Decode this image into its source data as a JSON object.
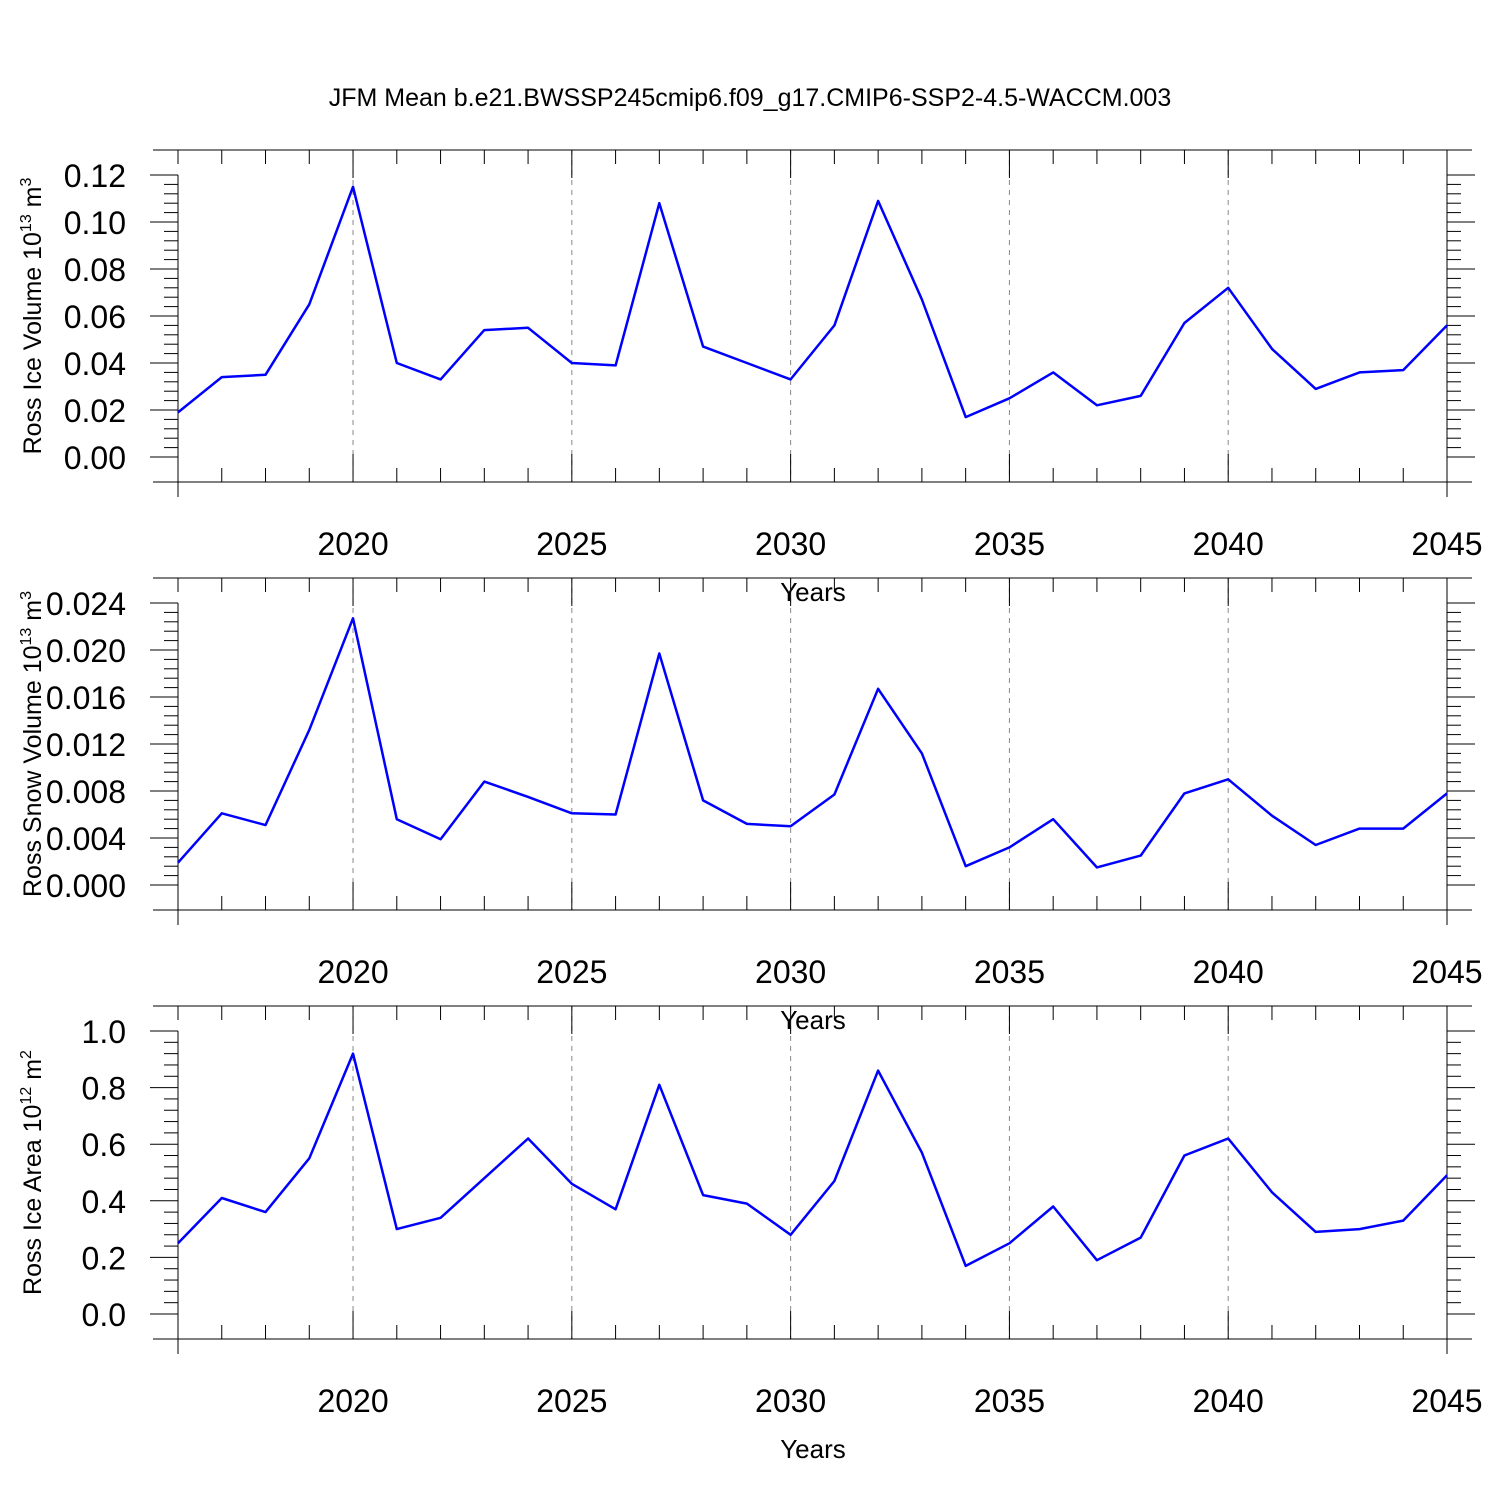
{
  "title": "JFM Mean b.e21.BWSSP245cmip6.f09_g17.CMIP6-SSP2-4.5-WACCM.003",
  "colors": {
    "line": "#0000ff",
    "axis": "#000000",
    "grid": "#888888"
  },
  "chart_data": [
    {
      "type": "line",
      "xlabel": "Years",
      "ylabel": {
        "base": "Ross Ice Volume 10",
        "exp": "13",
        "unit": " m",
        "unit_exp": "3"
      },
      "xlim": [
        2016,
        2045
      ],
      "ylim": [
        0,
        0.12
      ],
      "xticks": [
        2020,
        2025,
        2030,
        2035,
        2040,
        2045
      ],
      "yticks": [
        0,
        0.02,
        0.04,
        0.06,
        0.08,
        0.1,
        0.12
      ],
      "ytick_labels": [
        "0.00",
        "0.02",
        "0.04",
        "0.06",
        "0.08",
        "0.10",
        "0.12"
      ],
      "grid": "vertical dashed at major x ticks",
      "x": [
        2016,
        2017,
        2018,
        2019,
        2020,
        2021,
        2022,
        2023,
        2024,
        2025,
        2026,
        2027,
        2028,
        2029,
        2030,
        2031,
        2032,
        2033,
        2034,
        2035,
        2036,
        2037,
        2038,
        2039,
        2040,
        2041,
        2042,
        2043,
        2044,
        2045
      ],
      "y": [
        0.019,
        0.034,
        0.035,
        0.065,
        0.115,
        0.04,
        0.033,
        0.054,
        0.055,
        0.04,
        0.039,
        0.108,
        0.047,
        0.04,
        0.033,
        0.056,
        0.109,
        0.067,
        0.017,
        0.025,
        0.036,
        0.022,
        0.026,
        0.057,
        0.072,
        0.046,
        0.029,
        0.036,
        0.037,
        0.056
      ]
    },
    {
      "type": "line",
      "xlabel": "Years",
      "ylabel": {
        "base": "Ross Snow Volume 10",
        "exp": "13",
        "unit": " m",
        "unit_exp": "3"
      },
      "xlim": [
        2016,
        2045
      ],
      "ylim": [
        0,
        0.024
      ],
      "xticks": [
        2020,
        2025,
        2030,
        2035,
        2040,
        2045
      ],
      "yticks": [
        0,
        0.004,
        0.008,
        0.012,
        0.016,
        0.02,
        0.024
      ],
      "ytick_labels": [
        "0.000",
        "0.004",
        "0.008",
        "0.012",
        "0.016",
        "0.020",
        "0.024"
      ],
      "grid": "vertical dashed at major x ticks",
      "x": [
        2016,
        2017,
        2018,
        2019,
        2020,
        2021,
        2022,
        2023,
        2024,
        2025,
        2026,
        2027,
        2028,
        2029,
        2030,
        2031,
        2032,
        2033,
        2034,
        2035,
        2036,
        2037,
        2038,
        2039,
        2040,
        2041,
        2042,
        2043,
        2044,
        2045
      ],
      "y": [
        0.0019,
        0.0061,
        0.0051,
        0.0132,
        0.0227,
        0.0056,
        0.0039,
        0.0088,
        0.0075,
        0.0061,
        0.006,
        0.0197,
        0.0072,
        0.0052,
        0.005,
        0.0077,
        0.0167,
        0.0112,
        0.0016,
        0.0032,
        0.0056,
        0.0015,
        0.0025,
        0.0078,
        0.009,
        0.0059,
        0.0034,
        0.0048,
        0.0048,
        0.0078
      ]
    },
    {
      "type": "line",
      "xlabel": "Years",
      "ylabel": {
        "base": "Ross Ice Area 10",
        "exp": "12",
        "unit": " m",
        "unit_exp": "2"
      },
      "xlim": [
        2016,
        2045
      ],
      "ylim": [
        0,
        1.0
      ],
      "xticks": [
        2020,
        2025,
        2030,
        2035,
        2040,
        2045
      ],
      "yticks": [
        0,
        0.2,
        0.4,
        0.6,
        0.8,
        1.0
      ],
      "ytick_labels": [
        "0.0",
        "0.2",
        "0.4",
        "0.6",
        "0.8",
        "1.0"
      ],
      "grid": "vertical dashed at major x ticks",
      "x": [
        2016,
        2017,
        2018,
        2019,
        2020,
        2021,
        2022,
        2023,
        2024,
        2025,
        2026,
        2027,
        2028,
        2029,
        2030,
        2031,
        2032,
        2033,
        2034,
        2035,
        2036,
        2037,
        2038,
        2039,
        2040,
        2041,
        2042,
        2043,
        2044,
        2045
      ],
      "y": [
        0.25,
        0.41,
        0.36,
        0.55,
        0.92,
        0.3,
        0.34,
        0.48,
        0.62,
        0.46,
        0.37,
        0.81,
        0.42,
        0.39,
        0.28,
        0.47,
        0.86,
        0.57,
        0.17,
        0.25,
        0.38,
        0.19,
        0.27,
        0.56,
        0.62,
        0.43,
        0.29,
        0.3,
        0.33,
        0.49
      ]
    }
  ]
}
